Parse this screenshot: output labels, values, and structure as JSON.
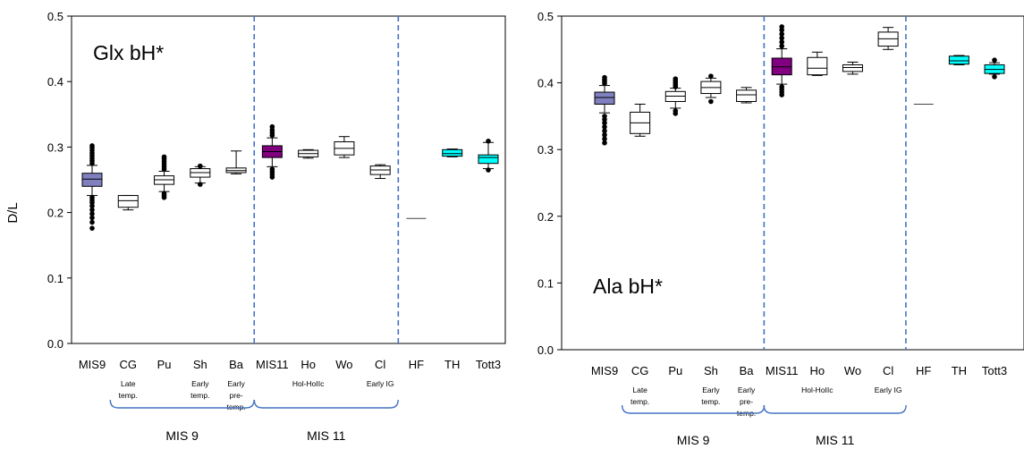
{
  "chart_data": [
    {
      "type": "box",
      "title": "Glx bH*",
      "xlabel": "",
      "ylabel": "D/L",
      "ylim": [
        0,
        0.5
      ],
      "yticks": [
        "0.0",
        "0.1",
        "0.2",
        "0.3",
        "0.4",
        "0.5"
      ],
      "categories": [
        "MIS9",
        "CG",
        "Pu",
        "Sh",
        "Ba",
        "MIS11",
        "Ho",
        "Wo",
        "Cl",
        "HF",
        "TH",
        "Tott3"
      ],
      "sublabels": [
        {
          "category": "CG",
          "lines": [
            "Late",
            "temp."
          ]
        },
        {
          "category": "Sh",
          "lines": [
            "Early",
            "temp."
          ]
        },
        {
          "category": "Ba",
          "lines": [
            "Early",
            "pre-",
            "temp."
          ]
        },
        {
          "category": "Ho",
          "lines": [
            "Hol-HoIIc"
          ]
        },
        {
          "category": "Cl",
          "lines": [
            "Early IG"
          ]
        }
      ],
      "group_labels": [
        {
          "label": "MIS 9",
          "from": "CG",
          "to": "Ba"
        },
        {
          "label": "MIS 11",
          "from": "MIS11",
          "to": "Cl"
        }
      ],
      "dividers_after": [
        "Ba",
        "Cl"
      ],
      "boxes": [
        {
          "category": "MIS9",
          "whislo": 0.226,
          "q1": 0.24,
          "med": 0.251,
          "q3": 0.26,
          "whishi": 0.272,
          "fill": "#8080c0",
          "outliers": [
            0.176,
            0.185,
            0.192,
            0.198,
            0.204,
            0.21,
            0.215,
            0.219,
            0.223,
            0.275,
            0.279,
            0.283,
            0.287,
            0.291,
            0.295,
            0.299,
            0.302
          ]
        },
        {
          "category": "CG",
          "whislo": 0.204,
          "q1": 0.208,
          "med": 0.218,
          "q3": 0.226,
          "whishi": 0.226,
          "fill": "#ffffff",
          "outliers": []
        },
        {
          "category": "Pu",
          "whislo": 0.232,
          "q1": 0.243,
          "med": 0.25,
          "q3": 0.256,
          "whishi": 0.263,
          "fill": "#ffffff",
          "outliers": [
            0.223,
            0.226,
            0.229,
            0.266,
            0.27,
            0.274,
            0.278,
            0.282,
            0.285
          ]
        },
        {
          "category": "Sh",
          "whislo": 0.245,
          "q1": 0.254,
          "med": 0.261,
          "q3": 0.267,
          "whishi": 0.27,
          "fill": "#ffffff",
          "outliers": [
            0.243,
            0.271
          ]
        },
        {
          "category": "Ba",
          "whislo": 0.259,
          "q1": 0.261,
          "med": 0.264,
          "q3": 0.268,
          "whishi": 0.294,
          "fill": "#ffffff",
          "outliers": []
        },
        {
          "category": "MIS11",
          "whislo": 0.27,
          "q1": 0.284,
          "med": 0.293,
          "q3": 0.302,
          "whishi": 0.314,
          "fill": "#800080",
          "outliers": [
            0.254,
            0.258,
            0.262,
            0.266,
            0.318,
            0.322,
            0.326,
            0.331
          ]
        },
        {
          "category": "Ho",
          "whislo": 0.283,
          "q1": 0.285,
          "med": 0.29,
          "q3": 0.295,
          "whishi": 0.296,
          "fill": "#ffffff",
          "outliers": []
        },
        {
          "category": "Wo",
          "whislo": 0.284,
          "q1": 0.288,
          "med": 0.298,
          "q3": 0.308,
          "whishi": 0.316,
          "fill": "#ffffff",
          "outliers": []
        },
        {
          "category": "Cl",
          "whislo": 0.252,
          "q1": 0.258,
          "med": 0.265,
          "q3": 0.271,
          "whishi": 0.273,
          "fill": "#ffffff",
          "outliers": []
        },
        {
          "category": "HF",
          "whislo": 0.191,
          "q1": 0.191,
          "med": 0.191,
          "q3": 0.191,
          "whishi": 0.191,
          "fill": "#ffffff",
          "outliers": []
        },
        {
          "category": "TH",
          "whislo": 0.285,
          "q1": 0.286,
          "med": 0.29,
          "q3": 0.296,
          "whishi": 0.297,
          "fill": "#00ffff",
          "outliers": []
        },
        {
          "category": "Tott3",
          "whislo": 0.267,
          "q1": 0.275,
          "med": 0.284,
          "q3": 0.288,
          "whishi": 0.307,
          "fill": "#00ffff",
          "outliers": [
            0.265,
            0.309
          ]
        }
      ]
    },
    {
      "type": "box",
      "title": "Ala bH*",
      "xlabel": "",
      "ylabel": "",
      "ylim": [
        0,
        0.5
      ],
      "yticks": [
        "0.0",
        "0.1",
        "0.2",
        "0.3",
        "0.4",
        "0.5"
      ],
      "categories": [
        "MIS9",
        "CG",
        "Pu",
        "Sh",
        "Ba",
        "MIS11",
        "Ho",
        "Wo",
        "Cl",
        "HF",
        "TH",
        "Tott3"
      ],
      "sublabels": [
        {
          "category": "CG",
          "lines": [
            "Late",
            "temp."
          ]
        },
        {
          "category": "Sh",
          "lines": [
            "Early",
            "temp."
          ]
        },
        {
          "category": "Ba",
          "lines": [
            "Early",
            "pre-",
            "temp."
          ]
        },
        {
          "category": "Ho",
          "lines": [
            "Hol-HoIIc"
          ]
        },
        {
          "category": "Cl",
          "lines": [
            "Early IG"
          ]
        }
      ],
      "group_labels": [
        {
          "label": "MIS 9",
          "from": "CG",
          "to": "Ba"
        },
        {
          "label": "MIS 11",
          "from": "MIS11",
          "to": "Cl"
        }
      ],
      "dividers_after": [
        "Ba",
        "Cl"
      ],
      "boxes": [
        {
          "category": "MIS9",
          "whislo": 0.355,
          "q1": 0.368,
          "med": 0.378,
          "q3": 0.386,
          "whishi": 0.396,
          "fill": "#8080c0",
          "outliers": [
            0.31,
            0.316,
            0.322,
            0.328,
            0.334,
            0.34,
            0.345,
            0.35,
            0.399,
            0.402,
            0.405,
            0.408
          ]
        },
        {
          "category": "CG",
          "whislo": 0.32,
          "q1": 0.324,
          "med": 0.34,
          "q3": 0.356,
          "whishi": 0.368,
          "fill": "#ffffff",
          "outliers": []
        },
        {
          "category": "Pu",
          "whislo": 0.362,
          "q1": 0.372,
          "med": 0.38,
          "q3": 0.387,
          "whishi": 0.392,
          "fill": "#ffffff",
          "outliers": [
            0.354,
            0.358,
            0.394,
            0.397,
            0.4,
            0.403,
            0.406
          ]
        },
        {
          "category": "Sh",
          "whislo": 0.378,
          "q1": 0.384,
          "med": 0.393,
          "q3": 0.402,
          "whishi": 0.407,
          "fill": "#ffffff",
          "outliers": [
            0.372,
            0.41
          ]
        },
        {
          "category": "Ba",
          "whislo": 0.37,
          "q1": 0.372,
          "med": 0.382,
          "q3": 0.389,
          "whishi": 0.393,
          "fill": "#ffffff",
          "outliers": []
        },
        {
          "category": "MIS11",
          "whislo": 0.398,
          "q1": 0.412,
          "med": 0.424,
          "q3": 0.437,
          "whishi": 0.451,
          "fill": "#800080",
          "outliers": [
            0.382,
            0.386,
            0.39,
            0.394,
            0.455,
            0.461,
            0.467,
            0.473,
            0.479,
            0.484
          ]
        },
        {
          "category": "Ho",
          "whislo": 0.411,
          "q1": 0.412,
          "med": 0.422,
          "q3": 0.438,
          "whishi": 0.446,
          "fill": "#ffffff",
          "outliers": []
        },
        {
          "category": "Wo",
          "whislo": 0.413,
          "q1": 0.417,
          "med": 0.423,
          "q3": 0.427,
          "whishi": 0.431,
          "fill": "#ffffff",
          "outliers": []
        },
        {
          "category": "Cl",
          "whislo": 0.45,
          "q1": 0.455,
          "med": 0.466,
          "q3": 0.476,
          "whishi": 0.483,
          "fill": "#ffffff",
          "outliers": []
        },
        {
          "category": "HF",
          "whislo": 0.368,
          "q1": 0.368,
          "med": 0.368,
          "q3": 0.368,
          "whishi": 0.368,
          "fill": "#ffffff",
          "outliers": []
        },
        {
          "category": "TH",
          "whislo": 0.427,
          "q1": 0.428,
          "med": 0.433,
          "q3": 0.44,
          "whishi": 0.441,
          "fill": "#00ffff",
          "outliers": []
        },
        {
          "category": "Tott3",
          "whislo": 0.413,
          "q1": 0.414,
          "med": 0.42,
          "q3": 0.427,
          "whishi": 0.43,
          "fill": "#00ffff",
          "outliers": [
            0.409,
            0.434
          ]
        }
      ]
    }
  ]
}
